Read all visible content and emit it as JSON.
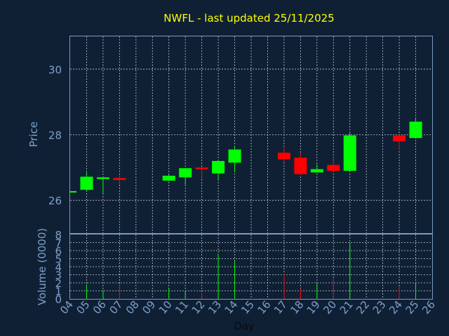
{
  "chart_data": [
    {
      "type": "candlestick",
      "title": "NWFL - last updated 25/11/2025",
      "xlabel": "",
      "ylabel": "Price",
      "ylim": [
        25,
        31
      ],
      "yticks": [
        26,
        28,
        30
      ],
      "grid": true,
      "colors": {
        "up": "#00ff00",
        "down": "#ff0000"
      },
      "candles": [
        {
          "day": 4,
          "open": 26.28,
          "high": 26.28,
          "low": 26.28,
          "close": 26.28
        },
        {
          "day": 5,
          "open": 26.32,
          "high": 26.85,
          "low": 26.3,
          "close": 26.72
        },
        {
          "day": 6,
          "open": 26.65,
          "high": 26.72,
          "low": 26.2,
          "close": 26.7
        },
        {
          "day": 7,
          "open": 26.68,
          "high": 26.75,
          "low": 26.48,
          "close": 26.62
        },
        {
          "day": 10,
          "open": 26.6,
          "high": 26.78,
          "low": 26.58,
          "close": 26.75
        },
        {
          "day": 11,
          "open": 26.7,
          "high": 26.98,
          "low": 26.48,
          "close": 26.98
        },
        {
          "day": 12,
          "open": 27.0,
          "high": 27.02,
          "low": 26.65,
          "close": 26.95
        },
        {
          "day": 13,
          "open": 26.82,
          "high": 27.22,
          "low": 26.65,
          "close": 27.2
        },
        {
          "day": 14,
          "open": 27.15,
          "high": 27.65,
          "low": 26.85,
          "close": 27.55
        },
        {
          "day": 17,
          "open": 27.45,
          "high": 27.6,
          "low": 27.15,
          "close": 27.25
        },
        {
          "day": 18,
          "open": 27.3,
          "high": 27.45,
          "low": 26.78,
          "close": 26.8
        },
        {
          "day": 19,
          "open": 26.85,
          "high": 27.1,
          "low": 26.85,
          "close": 26.95
        },
        {
          "day": 20,
          "open": 27.08,
          "high": 27.35,
          "low": 26.85,
          "close": 26.9
        },
        {
          "day": 21,
          "open": 26.9,
          "high": 28.05,
          "low": 26.9,
          "close": 27.98
        },
        {
          "day": 24,
          "open": 27.98,
          "high": 28.0,
          "low": 27.55,
          "close": 27.8
        },
        {
          "day": 25,
          "open": 27.9,
          "high": 28.5,
          "low": 27.9,
          "close": 28.4
        }
      ]
    },
    {
      "type": "bar",
      "title": "",
      "xlabel": "Day",
      "ylabel": "Volume (0000)",
      "ylim": [
        0,
        8
      ],
      "yticks": [
        0,
        1,
        2,
        3,
        4,
        5,
        6,
        7,
        8
      ],
      "xlim": [
        4,
        26
      ],
      "xticks": [
        "04",
        "05",
        "06",
        "07",
        "08",
        "09",
        "10",
        "11",
        "12",
        "13",
        "14",
        "15",
        "16",
        "17",
        "18",
        "19",
        "20",
        "21",
        "22",
        "23",
        "24",
        "25",
        "26"
      ],
      "grid": true,
      "bars": [
        {
          "day": 5,
          "value": 1.8,
          "direction": "up"
        },
        {
          "day": 6,
          "value": 1.1,
          "direction": "up"
        },
        {
          "day": 7,
          "value": 1.9,
          "direction": "down"
        },
        {
          "day": 10,
          "value": 1.4,
          "direction": "up"
        },
        {
          "day": 11,
          "value": 1.0,
          "direction": "up"
        },
        {
          "day": 12,
          "value": 0.7,
          "direction": "down"
        },
        {
          "day": 13,
          "value": 5.6,
          "direction": "up"
        },
        {
          "day": 14,
          "value": 4.7,
          "direction": "up"
        },
        {
          "day": 17,
          "value": 3.1,
          "direction": "down"
        },
        {
          "day": 18,
          "value": 1.3,
          "direction": "down"
        },
        {
          "day": 19,
          "value": 2.0,
          "direction": "up"
        },
        {
          "day": 20,
          "value": 2.5,
          "direction": "down"
        },
        {
          "day": 21,
          "value": 7.0,
          "direction": "up"
        },
        {
          "day": 24,
          "value": 1.5,
          "direction": "down"
        },
        {
          "day": 25,
          "value": 1.9,
          "direction": "up"
        }
      ]
    }
  ]
}
